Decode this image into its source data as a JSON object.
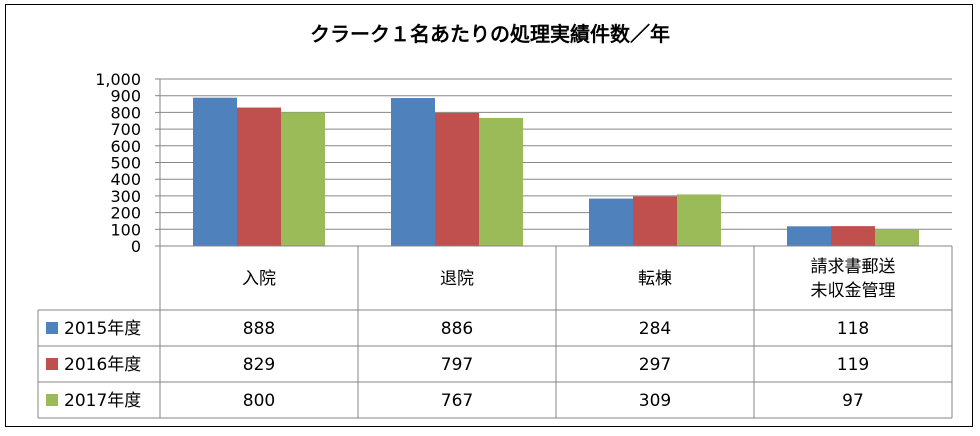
{
  "chart_data": {
    "type": "bar",
    "title": "クラーク１名あたりの処理実績件数／年",
    "categories": [
      {
        "lines": [
          "入院"
        ]
      },
      {
        "lines": [
          "退院"
        ]
      },
      {
        "lines": [
          "転棟"
        ]
      },
      {
        "lines": [
          "請求書郵送",
          "未収金管理"
        ]
      }
    ],
    "ylim": [
      0,
      1000
    ],
    "yticks": [
      {
        "value": 0,
        "label": "0"
      },
      {
        "value": 100,
        "label": "100"
      },
      {
        "value": 200,
        "label": "200"
      },
      {
        "value": 300,
        "label": "300"
      },
      {
        "value": 400,
        "label": "400"
      },
      {
        "value": 500,
        "label": "500"
      },
      {
        "value": 600,
        "label": "600"
      },
      {
        "value": 700,
        "label": "700"
      },
      {
        "value": 800,
        "label": "800"
      },
      {
        "value": 900,
        "label": "900"
      },
      {
        "value": 1000,
        "label": "1,000"
      }
    ],
    "grid": true,
    "legend": "data-table-left",
    "series": [
      {
        "name": "2015年度",
        "color": "#4f81bd",
        "values": [
          888,
          886,
          284,
          118
        ],
        "labels": [
          "888",
          "886",
          "284",
          "118"
        ]
      },
      {
        "name": "2016年度",
        "color": "#c0504d",
        "values": [
          829,
          797,
          297,
          119
        ],
        "labels": [
          "829",
          "797",
          "297",
          "119"
        ]
      },
      {
        "name": "2017年度",
        "color": "#9bbb59",
        "values": [
          800,
          767,
          309,
          97
        ],
        "labels": [
          "800",
          "767",
          "309",
          "97"
        ]
      }
    ]
  }
}
